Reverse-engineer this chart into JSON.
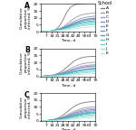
{
  "title_A": "A",
  "title_B": "B",
  "title_C": "C",
  "xlabel": "Time, d",
  "ylabel": "Cumulative\nproportion\ninfected, %",
  "xmax": 70,
  "ymax": 20,
  "xticks": [
    7,
    14,
    21,
    28,
    35,
    42,
    49,
    56,
    63,
    70
  ],
  "yticks": [
    0,
    5,
    10,
    15,
    20
  ],
  "school_labels": [
    "A",
    "B",
    "C",
    "D",
    "E",
    "F",
    "G",
    "H",
    "I",
    "J",
    "K"
  ],
  "school_colors": [
    "#777777",
    "#9999aa",
    "#8899bb",
    "#7788bb",
    "#8888cc",
    "#5599bb",
    "#33aaaa",
    "#44bbbb",
    "#66cccc",
    "#99dddd",
    "#aaeedd"
  ],
  "scenario_A": {
    "finals": [
      20.5,
      13.5,
      11.5,
      10.0,
      9.5,
      9.0,
      8.0,
      7.0,
      6.0,
      5.0,
      3.5
    ],
    "steeps": [
      0.22,
      0.13,
      0.11,
      0.1,
      0.1,
      0.1,
      0.09,
      0.09,
      0.09,
      0.08,
      0.08
    ],
    "infls": [
      30,
      36,
      37,
      38,
      37,
      38,
      38,
      38,
      39,
      39,
      40
    ]
  },
  "scenario_B": {
    "finals": [
      14.0,
      10.0,
      8.5,
      7.5,
      7.0,
      6.0,
      5.5,
      5.0,
      4.0,
      3.0,
      2.0
    ],
    "steeps": [
      0.14,
      0.11,
      0.1,
      0.1,
      0.1,
      0.09,
      0.09,
      0.09,
      0.08,
      0.08,
      0.07
    ],
    "infls": [
      35,
      37,
      37,
      38,
      38,
      38,
      39,
      39,
      40,
      40,
      41
    ]
  },
  "scenario_C": {
    "finals": [
      14.0,
      10.5,
      9.0,
      8.0,
      7.5,
      6.5,
      6.0,
      5.5,
      4.5,
      3.5,
      2.5
    ],
    "steeps": [
      0.13,
      0.11,
      0.1,
      0.1,
      0.1,
      0.09,
      0.09,
      0.09,
      0.08,
      0.08,
      0.07
    ],
    "infls": [
      35,
      37,
      37,
      38,
      38,
      38,
      39,
      39,
      40,
      40,
      41
    ]
  },
  "legend_title": "School",
  "figsize": [
    1.5,
    1.44
  ],
  "dpi": 100
}
